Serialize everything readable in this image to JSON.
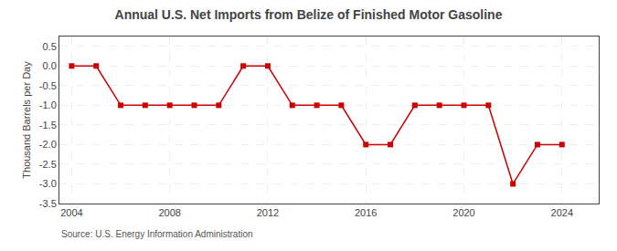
{
  "chart_data": {
    "type": "line",
    "title": "Annual U.S. Net Imports from Belize of Finished Motor Gasoline",
    "ylabel": "Thousand Barrels per Day",
    "annotations": [
      "Source: U.S. Energy Information Administration"
    ],
    "x": [
      2004,
      2005,
      2006,
      2007,
      2008,
      2009,
      2010,
      2011,
      2012,
      2013,
      2014,
      2015,
      2016,
      2017,
      2018,
      2019,
      2020,
      2021,
      2022,
      2023,
      2024
    ],
    "values": [
      0,
      0,
      -1,
      -1,
      -1,
      -1,
      -1,
      0,
      0,
      -1,
      -1,
      -1,
      -2,
      -2,
      -1,
      -1,
      -1,
      -1,
      -3,
      -2,
      -2
    ],
    "color": "#cc0000",
    "marker": "square",
    "line_style": "solid",
    "xlim": [
      2003.5,
      2025.5
    ],
    "ylim": [
      -3.5,
      0.75
    ],
    "xticks": [
      2004,
      2008,
      2012,
      2016,
      2020,
      2024
    ],
    "yticks": [
      0.5,
      {
        "value": 0,
        "label": "0.0"
      },
      -0.5,
      {
        "value": -1,
        "label": "-1.0"
      },
      -1.5,
      {
        "value": -2,
        "label": "-2.0"
      },
      -2.5,
      {
        "value": -3,
        "label": "-3.0"
      },
      -3.5
    ],
    "grid": true
  }
}
